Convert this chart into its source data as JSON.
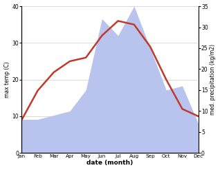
{
  "months": [
    "Jan",
    "Feb",
    "Mar",
    "Apr",
    "May",
    "Jun",
    "Jul",
    "Aug",
    "Sep",
    "Oct",
    "Nov",
    "Dec"
  ],
  "temp": [
    9,
    17,
    22,
    25,
    26,
    32,
    36,
    35,
    29,
    20,
    12,
    10
  ],
  "precip_left_scale": [
    8,
    8,
    9,
    10,
    15,
    32,
    28,
    35,
    25,
    15,
    16,
    7
  ],
  "temp_color": "#c0392b",
  "precip_fill_color": "#b8c4ee",
  "temp_ylim": [
    0,
    40
  ],
  "precip_ylim": [
    0,
    35
  ],
  "temp_yticks": [
    0,
    10,
    20,
    30,
    40
  ],
  "precip_yticks": [
    0,
    5,
    10,
    15,
    20,
    25,
    30,
    35
  ],
  "xlabel": "date (month)",
  "ylabel_left": "max temp (C)",
  "ylabel_right": "med. precipitation (kg/m2)",
  "background_color": "#ffffff",
  "line_width": 1.8,
  "grid_color": "#cccccc"
}
